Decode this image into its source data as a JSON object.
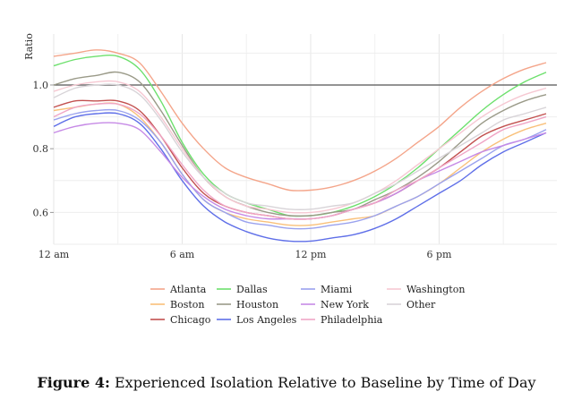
{
  "chart_data": {
    "type": "line",
    "ylabel": "Ratio",
    "xlabel": "",
    "ylim": [
      0.5,
      1.16
    ],
    "xlim": [
      0,
      23.5
    ],
    "y_ticks": [
      0.6,
      0.8,
      1.0
    ],
    "y_tick_labels": [
      "0.6",
      "0.8",
      "1.0"
    ],
    "x_ticks": [
      0,
      6,
      12,
      18
    ],
    "x_tick_labels": [
      "12 am",
      "6 am",
      "12 pm",
      "6 pm"
    ],
    "grid": true,
    "reference_line": 1.0,
    "legend_placement": "bottom",
    "x": [
      0,
      1,
      2,
      3,
      4,
      5,
      6,
      7,
      8,
      9,
      10,
      11,
      12,
      13,
      14,
      15,
      16,
      17,
      18,
      19,
      20,
      21,
      22,
      23
    ],
    "series": [
      {
        "name": "Atlanta",
        "color": "#f4a58a",
        "values": [
          1.09,
          1.1,
          1.11,
          1.1,
          1.07,
          0.98,
          0.88,
          0.8,
          0.74,
          0.71,
          0.69,
          0.67,
          0.67,
          0.68,
          0.7,
          0.73,
          0.77,
          0.82,
          0.87,
          0.93,
          0.98,
          1.02,
          1.05,
          1.07
        ]
      },
      {
        "name": "Boston",
        "color": "#f9c07a",
        "values": [
          0.92,
          0.93,
          0.94,
          0.94,
          0.9,
          0.82,
          0.72,
          0.64,
          0.6,
          0.58,
          0.57,
          0.56,
          0.56,
          0.57,
          0.58,
          0.59,
          0.62,
          0.65,
          0.69,
          0.74,
          0.79,
          0.83,
          0.86,
          0.88
        ]
      },
      {
        "name": "Chicago",
        "color": "#c2504f",
        "values": [
          0.93,
          0.95,
          0.95,
          0.95,
          0.92,
          0.84,
          0.74,
          0.66,
          0.62,
          0.6,
          0.59,
          0.58,
          0.58,
          0.59,
          0.61,
          0.63,
          0.66,
          0.7,
          0.74,
          0.79,
          0.84,
          0.87,
          0.89,
          0.91
        ]
      },
      {
        "name": "Dallas",
        "color": "#6de06d",
        "values": [
          1.06,
          1.08,
          1.09,
          1.09,
          1.05,
          0.95,
          0.82,
          0.72,
          0.66,
          0.63,
          0.61,
          0.59,
          0.59,
          0.6,
          0.62,
          0.65,
          0.69,
          0.74,
          0.8,
          0.86,
          0.92,
          0.97,
          1.01,
          1.04
        ]
      },
      {
        "name": "Houston",
        "color": "#9a9a88",
        "values": [
          1.0,
          1.02,
          1.03,
          1.04,
          1.01,
          0.92,
          0.81,
          0.71,
          0.65,
          0.62,
          0.6,
          0.59,
          0.59,
          0.6,
          0.61,
          0.64,
          0.67,
          0.71,
          0.76,
          0.82,
          0.88,
          0.92,
          0.95,
          0.97
        ]
      },
      {
        "name": "Los Angeles",
        "color": "#5f6fe8",
        "values": [
          0.87,
          0.9,
          0.91,
          0.91,
          0.88,
          0.8,
          0.7,
          0.62,
          0.57,
          0.54,
          0.52,
          0.51,
          0.51,
          0.52,
          0.53,
          0.55,
          0.58,
          0.62,
          0.66,
          0.7,
          0.75,
          0.79,
          0.82,
          0.85
        ]
      },
      {
        "name": "Miami",
        "color": "#9aa2ee",
        "values": [
          0.89,
          0.91,
          0.92,
          0.92,
          0.89,
          0.82,
          0.72,
          0.64,
          0.6,
          0.57,
          0.56,
          0.55,
          0.55,
          0.56,
          0.57,
          0.59,
          0.62,
          0.65,
          0.69,
          0.73,
          0.77,
          0.81,
          0.83,
          0.86
        ]
      },
      {
        "name": "New York",
        "color": "#c68ae6",
        "values": [
          0.85,
          0.87,
          0.88,
          0.88,
          0.86,
          0.79,
          0.71,
          0.65,
          0.61,
          0.59,
          0.58,
          0.58,
          0.58,
          0.59,
          0.61,
          0.63,
          0.66,
          0.7,
          0.73,
          0.76,
          0.79,
          0.81,
          0.83,
          0.85
        ]
      },
      {
        "name": "Philadelphia",
        "color": "#f0a6c6",
        "values": [
          0.9,
          0.93,
          0.94,
          0.94,
          0.91,
          0.84,
          0.75,
          0.67,
          0.62,
          0.6,
          0.59,
          0.58,
          0.58,
          0.59,
          0.61,
          0.63,
          0.67,
          0.7,
          0.74,
          0.78,
          0.82,
          0.86,
          0.88,
          0.9
        ]
      },
      {
        "name": "Washington",
        "color": "#f6c8d2",
        "values": [
          0.98,
          1.0,
          1.01,
          1.01,
          0.98,
          0.9,
          0.8,
          0.71,
          0.65,
          0.62,
          0.61,
          0.6,
          0.6,
          0.61,
          0.63,
          0.66,
          0.7,
          0.75,
          0.8,
          0.85,
          0.9,
          0.94,
          0.97,
          0.99
        ]
      },
      {
        "name": "Other",
        "color": "#d8d4d8",
        "values": [
          0.96,
          0.99,
          1.0,
          1.0,
          0.97,
          0.89,
          0.79,
          0.71,
          0.66,
          0.63,
          0.62,
          0.61,
          0.61,
          0.62,
          0.63,
          0.66,
          0.69,
          0.73,
          0.77,
          0.81,
          0.85,
          0.89,
          0.91,
          0.93
        ]
      }
    ]
  },
  "caption": {
    "prefix": "Figure 4:",
    "text": "Experienced Isolation Relative to Baseline by Time of Day"
  }
}
